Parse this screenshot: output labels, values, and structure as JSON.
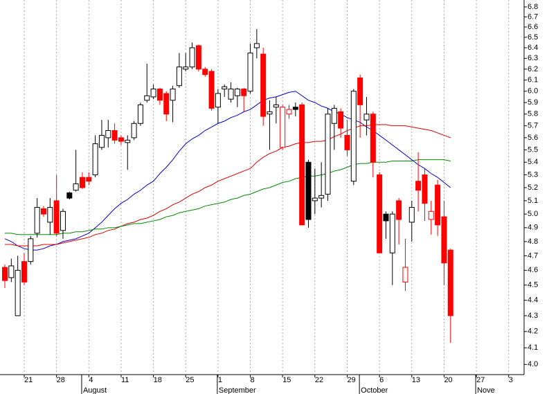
{
  "chart_data": {
    "type": "candlestick",
    "log_scale": true,
    "ylim": [
      3.94,
      6.87
    ],
    "yticks": [
      {
        "value": 4.0,
        "label": "4.0"
      },
      4.1,
      4.2,
      4.3,
      4.4,
      4.5,
      4.6,
      4.7,
      4.8,
      4.9,
      {
        "value": 5.0,
        "label": "5.0"
      },
      5.1,
      5.2,
      5.3,
      5.4,
      5.5,
      5.6,
      5.7,
      5.8,
      5.9,
      {
        "value": 6.0,
        "label": "6.0"
      },
      6.1,
      6.2,
      6.3,
      6.4,
      6.5,
      6.6,
      6.7,
      6.8
    ],
    "grid": true,
    "categories": [
      null,
      null,
      null,
      "21",
      null,
      null,
      null,
      null,
      "28",
      null,
      null,
      null,
      null,
      "4",
      null,
      null,
      null,
      null,
      "11",
      null,
      null,
      null,
      null,
      "18",
      null,
      null,
      null,
      null,
      "25",
      null,
      null,
      null,
      null,
      "1",
      null,
      null,
      null,
      null,
      "8",
      null,
      null,
      null,
      null,
      "15",
      null,
      null,
      null,
      null,
      "22",
      null,
      null,
      null,
      null,
      "29",
      null,
      null,
      null,
      null,
      "6",
      null,
      null,
      null,
      null,
      "13",
      null,
      null,
      null,
      null,
      "20",
      null,
      null,
      null,
      null,
      "27",
      null,
      null,
      null,
      null,
      "3",
      null,
      null
    ],
    "months": [
      null,
      null,
      null,
      null,
      null,
      null,
      null,
      null,
      null,
      null,
      null,
      null,
      "August",
      null,
      null,
      null,
      null,
      null,
      null,
      null,
      null,
      null,
      null,
      null,
      null,
      null,
      null,
      null,
      null,
      null,
      null,
      null,
      null,
      "September",
      null,
      null,
      null,
      null,
      null,
      null,
      null,
      null,
      null,
      null,
      null,
      null,
      null,
      null,
      null,
      null,
      null,
      null,
      null,
      null,
      null,
      "October",
      null,
      null,
      null,
      null,
      null,
      null,
      null,
      null,
      null,
      null,
      null,
      null,
      null,
      null,
      null,
      null,
      null,
      "Nove",
      null,
      null
    ],
    "candles": {
      "open": [
        4.62,
        4.55,
        4.3,
        4.66,
        4.66,
        4.86,
        5.04,
        4.94,
        5.1,
        4.88,
        5.12,
        5.18,
        5.28,
        5.28,
        5.3,
        5.52,
        5.6,
        5.66,
        5.6,
        5.56,
        5.6,
        5.72,
        5.92,
        5.95,
        6.02,
        5.98,
        5.92,
        6.05,
        6.2,
        6.22,
        6.42,
        6.2,
        6.18,
        5.86,
        6.02,
        5.93,
        5.96,
        6.02,
        6.0,
        6.4,
        6.34,
        5.8,
        5.86,
        5.52,
        5.8,
        5.84,
        5.88,
        4.96,
        5.1,
        5.12,
        5.15,
        5.72,
        5.82,
        5.62,
        5.25,
        6.12,
        5.75,
        5.8,
        5.3,
        4.95,
        4.72,
        5.1,
        4.52,
        4.94,
        5.25,
        5.3,
        4.96,
        5.22,
        4.98,
        4.74
      ],
      "high": [
        4.64,
        4.68,
        4.7,
        4.72,
        4.84,
        5.12,
        5.06,
        5.12,
        5.3,
        5.04,
        5.17,
        5.5,
        5.32,
        5.32,
        5.62,
        5.75,
        5.75,
        5.72,
        5.62,
        5.62,
        5.74,
        5.9,
        6.25,
        6.06,
        6.03,
        6.0,
        6.05,
        6.35,
        6.35,
        6.45,
        6.43,
        6.22,
        6.2,
        6.02,
        6.06,
        6.08,
        6.03,
        6.03,
        6.44,
        6.58,
        6.4,
        5.92,
        5.95,
        5.88,
        5.88,
        5.9,
        5.9,
        5.42,
        5.35,
        5.4,
        5.85,
        5.88,
        5.85,
        5.75,
        6.02,
        6.15,
        5.95,
        5.82,
        5.32,
        5.02,
        5.02,
        5.12,
        4.82,
        5.1,
        5.48,
        5.35,
        5.1,
        5.26,
        5.1,
        4.75
      ],
      "low": [
        4.48,
        4.52,
        4.3,
        4.5,
        4.64,
        4.83,
        4.98,
        4.85,
        4.84,
        4.82,
        5.11,
        5.17,
        5.19,
        5.22,
        5.28,
        5.5,
        5.52,
        5.55,
        5.54,
        5.34,
        5.58,
        5.7,
        5.9,
        5.93,
        5.88,
        5.74,
        5.73,
        6.03,
        6.18,
        6.2,
        6.18,
        6.13,
        5.83,
        5.72,
        5.95,
        5.9,
        5.86,
        5.82,
        5.98,
        6.3,
        5.7,
        5.5,
        5.72,
        5.5,
        5.76,
        5.78,
        4.92,
        4.9,
        5.0,
        5.05,
        5.1,
        5.5,
        5.6,
        5.45,
        5.22,
        5.6,
        5.62,
        5.28,
        4.72,
        4.82,
        4.5,
        4.78,
        4.46,
        4.8,
        5.02,
        4.95,
        4.85,
        4.84,
        4.5,
        4.13
      ],
      "close": [
        4.53,
        4.63,
        4.6,
        4.52,
        4.82,
        5.05,
        5.0,
        5.05,
        4.86,
        5.02,
        5.16,
        5.23,
        5.2,
        5.25,
        5.55,
        5.62,
        5.66,
        5.58,
        5.57,
        5.58,
        5.72,
        5.88,
        5.96,
        6.02,
        5.92,
        5.8,
        6.02,
        6.22,
        6.22,
        6.4,
        6.2,
        6.15,
        5.85,
        5.98,
        6.04,
        6.02,
        6.02,
        5.96,
        6.35,
        6.44,
        5.78,
        5.82,
        5.88,
        5.86,
        5.84,
        5.86,
        4.92,
        5.4,
        5.12,
        5.14,
        5.8,
        5.85,
        5.68,
        5.5,
        6.0,
        5.88,
        5.8,
        5.4,
        4.72,
        5.0,
        5.0,
        4.96,
        4.62,
        5.05,
        5.18,
        5.08,
        5.02,
        4.92,
        4.65,
        4.3
      ],
      "fill": [
        "#ff0000",
        "#ffffff",
        "#ffffff",
        "#ff0000",
        "#ffffff",
        "#ffffff",
        "#ff0000",
        "#ffffff",
        "#ff0000",
        "#ffffff",
        "#000000",
        "#ffffff",
        "#ff0000",
        "#ff0000",
        "#ffffff",
        "#ffffff",
        "#ffffff",
        "#ff0000",
        "#ff0000",
        "#ffffff",
        "#ffffff",
        "#ffffff",
        "#ffffff",
        "#ffffff",
        "#ff0000",
        "#ff0000",
        "#ffffff",
        "#ffffff",
        "#ffffff",
        "#ffffff",
        "#ff0000",
        "#ff0000",
        "#ff0000",
        "#ffffff",
        "#ffffff",
        "#ffffff",
        "#ffffff",
        "#ff0000",
        "#ffffff",
        "#ffffff",
        "#ff0000",
        "#ffffff",
        "#ffffff",
        "#ffffff",
        "#ffffff",
        "#000000",
        "#ff0000",
        "#000000",
        "#ffffff",
        "#ffffff",
        "#ffffff",
        "#ffffff",
        "#ff0000",
        "#ff0000",
        "#ffffff",
        "#ff0000",
        "#ffffff",
        "#ff0000",
        "#ff0000",
        "#000000",
        "#ffffff",
        "#ff0000",
        "#ffffff",
        "#ffffff",
        "#ff0000",
        "#ff0000",
        "#ffffff",
        "#ff0000",
        "#ff0000",
        "#ff0000"
      ],
      "stroke": [
        "#ff0000",
        "#000000",
        "#000000",
        "#ff0000",
        "#000000",
        "#000000",
        "#ff0000",
        "#000000",
        "#ff0000",
        "#000000",
        "#000000",
        "#000000",
        "#ff0000",
        "#ff0000",
        "#000000",
        "#000000",
        "#000000",
        "#ff0000",
        "#ff0000",
        "#000000",
        "#000000",
        "#000000",
        "#000000",
        "#000000",
        "#ff0000",
        "#ff0000",
        "#000000",
        "#000000",
        "#000000",
        "#000000",
        "#ff0000",
        "#ff0000",
        "#ff0000",
        "#000000",
        "#000000",
        "#000000",
        "#000000",
        "#ff0000",
        "#000000",
        "#000000",
        "#ff0000",
        "#000000",
        "#000000",
        "#ff0000",
        "#ff0000",
        "#000000",
        "#ff0000",
        "#000000",
        "#000000",
        "#000000",
        "#000000",
        "#000000",
        "#ff0000",
        "#ff0000",
        "#000000",
        "#ff0000",
        "#000000",
        "#ff0000",
        "#ff0000",
        "#000000",
        "#000000",
        "#ff0000",
        "#ff0000",
        "#000000",
        "#ff0000",
        "#ff0000",
        "#ff0000",
        "#ff0000",
        "#ff0000",
        "#ff0000"
      ]
    },
    "series": [
      {
        "color": "#0000cc",
        "values": [
          4.82,
          4.8,
          4.77,
          4.75,
          4.74,
          4.74,
          4.75,
          4.77,
          4.78,
          4.8,
          4.81,
          4.82,
          4.84,
          4.86,
          4.9,
          4.94,
          4.99,
          5.04,
          5.08,
          5.11,
          5.15,
          5.18,
          5.22,
          5.25,
          5.31,
          5.36,
          5.42,
          5.49,
          5.55,
          5.59,
          5.62,
          5.66,
          5.69,
          5.72,
          5.74,
          5.77,
          5.79,
          5.82,
          5.84,
          5.88,
          5.92,
          5.94,
          5.95,
          5.97,
          5.99,
          6.0,
          5.96,
          5.92,
          5.9,
          5.87,
          5.85,
          5.82,
          5.8,
          5.77,
          5.75,
          5.73,
          5.69,
          5.66,
          5.62,
          5.58,
          5.54,
          5.5,
          5.46,
          5.42,
          5.38,
          5.35,
          5.31,
          5.28,
          5.24,
          5.2,
          null,
          null,
          null,
          null,
          null,
          null,
          null,
          null,
          null,
          null,
          null
        ]
      },
      {
        "color": "#dd0000",
        "values": [
          4.78,
          4.78,
          4.77,
          4.77,
          4.77,
          4.77,
          4.78,
          4.78,
          4.78,
          4.79,
          4.8,
          4.81,
          4.82,
          4.83,
          4.85,
          4.86,
          4.88,
          4.89,
          4.91,
          4.93,
          4.94,
          4.96,
          4.97,
          4.99,
          5.02,
          5.04,
          5.07,
          5.09,
          5.12,
          5.15,
          5.17,
          5.2,
          5.22,
          5.25,
          5.27,
          5.29,
          5.31,
          5.33,
          5.35,
          5.4,
          5.44,
          5.47,
          5.49,
          5.52,
          5.53,
          5.55,
          5.56,
          5.56,
          5.57,
          5.57,
          5.58,
          5.61,
          5.63,
          5.66,
          5.68,
          5.7,
          5.7,
          5.71,
          5.71,
          5.71,
          5.7,
          5.7,
          5.7,
          5.69,
          5.68,
          5.67,
          5.66,
          5.64,
          5.62,
          5.6,
          null,
          null,
          null,
          null,
          null,
          null,
          null,
          null,
          null,
          null,
          null
        ]
      },
      {
        "color": "#008800",
        "values": [
          4.86,
          4.86,
          4.85,
          4.85,
          4.85,
          4.85,
          4.85,
          4.85,
          4.85,
          4.86,
          4.86,
          4.87,
          4.87,
          4.88,
          4.89,
          4.89,
          4.9,
          4.9,
          4.91,
          4.92,
          4.93,
          4.93,
          4.94,
          4.95,
          4.96,
          4.98,
          4.99,
          5.01,
          5.02,
          5.03,
          5.04,
          5.06,
          5.07,
          5.08,
          5.09,
          5.11,
          5.12,
          5.14,
          5.15,
          5.17,
          5.19,
          5.2,
          5.22,
          5.24,
          5.25,
          5.27,
          5.28,
          5.29,
          5.29,
          5.3,
          5.31,
          5.33,
          5.34,
          5.36,
          5.38,
          5.39,
          5.39,
          5.4,
          5.4,
          5.4,
          5.41,
          5.41,
          5.41,
          5.41,
          5.42,
          5.42,
          5.42,
          5.42,
          5.42,
          5.41,
          null,
          null,
          null,
          null,
          null,
          null,
          null,
          null,
          null,
          null,
          null
        ]
      }
    ]
  }
}
